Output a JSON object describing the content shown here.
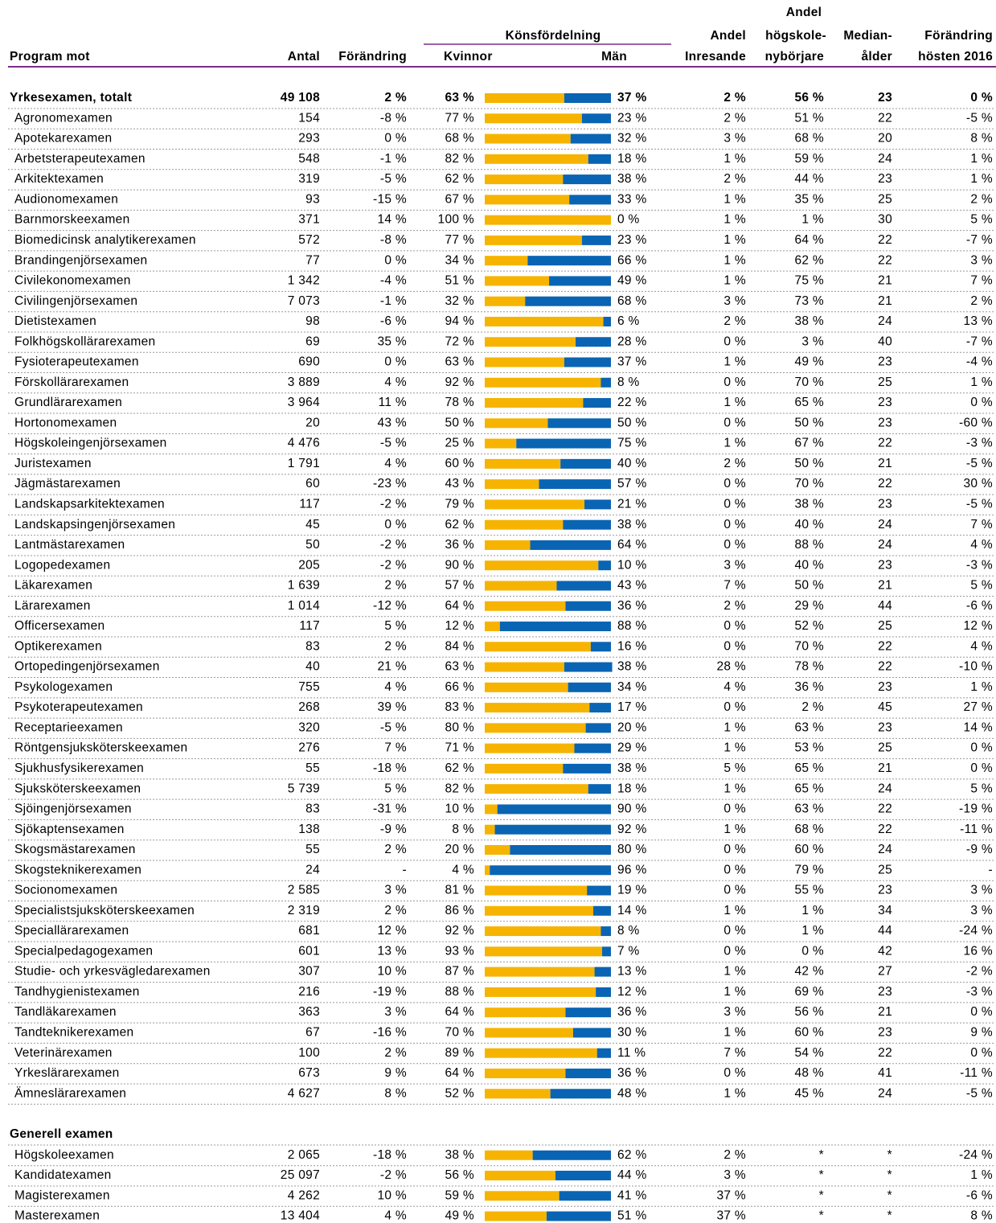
{
  "header": {
    "program": "Program mot",
    "antal": "Antal",
    "forandring": "Förändring",
    "kvinnor": "Kvinnor",
    "man": "Män",
    "kon": "Könsfördelning",
    "andel1": "Andel",
    "inresande": "Inresande",
    "andel2": "Andel",
    "hogskole": "högskole-",
    "nyborjare": "nybörjare",
    "median1": "Median-",
    "median2": "ålder",
    "fhost1": "Förändring",
    "fhost2": "hösten 2016"
  },
  "sections": [
    {
      "rows": [
        [
          "Yrkesexamen, totalt",
          "49 108",
          "2 %",
          63,
          "63 %",
          37,
          "37 %",
          "2 %",
          "56 %",
          "23",
          "0 %"
        ],
        [
          "Agronomexamen",
          "154",
          "-8 %",
          77,
          "77 %",
          23,
          "23 %",
          "2 %",
          "51 %",
          "22",
          "-5 %"
        ],
        [
          "Apotekarexamen",
          "293",
          "0 %",
          68,
          "68 %",
          32,
          "32 %",
          "3 %",
          "68 %",
          "20",
          "8 %"
        ],
        [
          "Arbetsterapeutexamen",
          "548",
          "-1 %",
          82,
          "82 %",
          18,
          "18 %",
          "1 %",
          "59 %",
          "24",
          "1 %"
        ],
        [
          "Arkitektexamen",
          "319",
          "-5 %",
          62,
          "62 %",
          38,
          "38 %",
          "2 %",
          "44 %",
          "23",
          "1 %"
        ],
        [
          "Audionomexamen",
          "93",
          "-15 %",
          67,
          "67 %",
          33,
          "33 %",
          "1 %",
          "35 %",
          "25",
          "2 %"
        ],
        [
          "Barnmorskeexamen",
          "371",
          "14 %",
          100,
          "100 %",
          0,
          "0 %",
          "1 %",
          "1 %",
          "30",
          "5 %"
        ],
        [
          "Biomedicinsk analytikerexamen",
          "572",
          "-8 %",
          77,
          "77 %",
          23,
          "23 %",
          "1 %",
          "64 %",
          "22",
          "-7 %"
        ],
        [
          "Brandingenjörsexamen",
          "77",
          "0 %",
          34,
          "34 %",
          66,
          "66 %",
          "1 %",
          "62 %",
          "22",
          "3 %"
        ],
        [
          "Civilekonomexamen",
          "1 342",
          "-4 %",
          51,
          "51 %",
          49,
          "49 %",
          "1 %",
          "75 %",
          "21",
          "7 %"
        ],
        [
          "Civilingenjörsexamen",
          "7 073",
          "-1 %",
          32,
          "32 %",
          68,
          "68 %",
          "3 %",
          "73 %",
          "21",
          "2 %"
        ],
        [
          "Dietistexamen",
          "98",
          "-6 %",
          94,
          "94 %",
          6,
          "6 %",
          "2 %",
          "38 %",
          "24",
          "13 %"
        ],
        [
          "Folkhögskollärarexamen",
          "69",
          "35 %",
          72,
          "72 %",
          28,
          "28 %",
          "0 %",
          "3 %",
          "40",
          "-7 %"
        ],
        [
          "Fysioterapeutexamen",
          "690",
          "0 %",
          63,
          "63 %",
          37,
          "37 %",
          "1 %",
          "49 %",
          "23",
          "-4 %"
        ],
        [
          "Förskollärarexamen",
          "3 889",
          "4 %",
          92,
          "92 %",
          8,
          "8 %",
          "0 %",
          "70 %",
          "25",
          "1 %"
        ],
        [
          "Grundlärarexamen",
          "3 964",
          "11 %",
          78,
          "78 %",
          22,
          "22 %",
          "1 %",
          "65 %",
          "23",
          "0 %"
        ],
        [
          "Hortonomexamen",
          "20",
          "43 %",
          50,
          "50 %",
          50,
          "50 %",
          "0 %",
          "50 %",
          "23",
          "-60 %"
        ],
        [
          "Högskoleingenjörsexamen",
          "4 476",
          "-5 %",
          25,
          "25 %",
          75,
          "75 %",
          "1 %",
          "67 %",
          "22",
          "-3 %"
        ],
        [
          "Juristexamen",
          "1 791",
          "4 %",
          60,
          "60 %",
          40,
          "40 %",
          "2 %",
          "50 %",
          "21",
          "-5 %"
        ],
        [
          "Jägmästarexamen",
          "60",
          "-23 %",
          43,
          "43 %",
          57,
          "57 %",
          "0 %",
          "70 %",
          "22",
          "30 %"
        ],
        [
          "Landskapsarkitektexamen",
          "117",
          "-2 %",
          79,
          "79 %",
          21,
          "21 %",
          "0 %",
          "38 %",
          "23",
          "-5 %"
        ],
        [
          "Landskapsingenjörsexamen",
          "45",
          "0 %",
          62,
          "62 %",
          38,
          "38 %",
          "0 %",
          "40 %",
          "24",
          "7 %"
        ],
        [
          "Lantmästarexamen",
          "50",
          "-2 %",
          36,
          "36 %",
          64,
          "64 %",
          "0 %",
          "88 %",
          "24",
          "4 %"
        ],
        [
          "Logopedexamen",
          "205",
          "-2 %",
          90,
          "90 %",
          10,
          "10 %",
          "3 %",
          "40 %",
          "23",
          "-3 %"
        ],
        [
          "Läkarexamen",
          "1 639",
          "2 %",
          57,
          "57 %",
          43,
          "43 %",
          "7 %",
          "50 %",
          "21",
          "5 %"
        ],
        [
          "Lärarexamen",
          "1 014",
          "-12 %",
          64,
          "64 %",
          36,
          "36 %",
          "2 %",
          "29 %",
          "44",
          "-6 %"
        ],
        [
          "Officersexamen",
          "117",
          "5 %",
          12,
          "12 %",
          88,
          "88 %",
          "0 %",
          "52 %",
          "25",
          "12 %"
        ],
        [
          "Optikerexamen",
          "83",
          "2 %",
          84,
          "84 %",
          16,
          "16 %",
          "0 %",
          "70 %",
          "22",
          "4 %"
        ],
        [
          "Ortopedingenjörsexamen",
          "40",
          "21 %",
          63,
          "63 %",
          38,
          "38 %",
          "28 %",
          "78 %",
          "22",
          "-10 %"
        ],
        [
          "Psykologexamen",
          "755",
          "4 %",
          66,
          "66 %",
          34,
          "34 %",
          "4 %",
          "36 %",
          "23",
          "1 %"
        ],
        [
          "Psykoterapeutexamen",
          "268",
          "39 %",
          83,
          "83 %",
          17,
          "17 %",
          "0 %",
          "2 %",
          "45",
          "27 %"
        ],
        [
          "Receptarieexamen",
          "320",
          "-5 %",
          80,
          "80 %",
          20,
          "20 %",
          "1 %",
          "63 %",
          "23",
          "14 %"
        ],
        [
          "Röntgensjuksköterskeexamen",
          "276",
          "7 %",
          71,
          "71 %",
          29,
          "29 %",
          "1 %",
          "53 %",
          "25",
          "0 %"
        ],
        [
          "Sjukhusfysikerexamen",
          "55",
          "-18 %",
          62,
          "62 %",
          38,
          "38 %",
          "5 %",
          "65 %",
          "21",
          "0 %"
        ],
        [
          "Sjuksköterskeexamen",
          "5 739",
          "5 %",
          82,
          "82 %",
          18,
          "18 %",
          "1 %",
          "65 %",
          "24",
          "5 %"
        ],
        [
          "Sjöingenjörsexamen",
          "83",
          "-31 %",
          10,
          "10 %",
          90,
          "90 %",
          "0 %",
          "63 %",
          "22",
          "-19 %"
        ],
        [
          "Sjökaptensexamen",
          "138",
          "-9 %",
          8,
          "8 %",
          92,
          "92 %",
          "1 %",
          "68 %",
          "22",
          "-11 %"
        ],
        [
          "Skogsmästarexamen",
          "55",
          "2 %",
          20,
          "20 %",
          80,
          "80 %",
          "0 %",
          "60 %",
          "24",
          "-9 %"
        ],
        [
          "Skogsteknikerexamen",
          "24",
          "-",
          4,
          "4 %",
          96,
          "96 %",
          "0 %",
          "79 %",
          "25",
          "-"
        ],
        [
          "Socionomexamen",
          "2 585",
          "3 %",
          81,
          "81 %",
          19,
          "19 %",
          "0 %",
          "55 %",
          "23",
          "3 %"
        ],
        [
          "Specialistsjuksköterskeexamen",
          "2 319",
          "2 %",
          86,
          "86 %",
          14,
          "14 %",
          "1 %",
          "1 %",
          "34",
          "3 %"
        ],
        [
          "Speciallärarexamen",
          "681",
          "12 %",
          92,
          "92 %",
          8,
          "8 %",
          "0 %",
          "1 %",
          "44",
          "-24 %"
        ],
        [
          "Specialpedagogexamen",
          "601",
          "13 %",
          93,
          "93 %",
          7,
          "7 %",
          "0 %",
          "0 %",
          "42",
          "16 %"
        ],
        [
          "Studie- och yrkesvägledarexamen",
          "307",
          "10 %",
          87,
          "87 %",
          13,
          "13 %",
          "1 %",
          "42 %",
          "27",
          "-2 %"
        ],
        [
          "Tandhygienistexamen",
          "216",
          "-19 %",
          88,
          "88 %",
          12,
          "12 %",
          "1 %",
          "69 %",
          "23",
          "-3 %"
        ],
        [
          "Tandläkarexamen",
          "363",
          "3 %",
          64,
          "64 %",
          36,
          "36 %",
          "3 %",
          "56 %",
          "21",
          "0 %"
        ],
        [
          "Tandteknikerexamen",
          "67",
          "-16 %",
          70,
          "70 %",
          30,
          "30 %",
          "1 %",
          "60 %",
          "23",
          "9 %"
        ],
        [
          "Veterinärexamen",
          "100",
          "2 %",
          89,
          "89 %",
          11,
          "11 %",
          "7 %",
          "54 %",
          "22",
          "0 %"
        ],
        [
          "Yrkeslärarexamen",
          "673",
          "9 %",
          64,
          "64 %",
          36,
          "36 %",
          "0 %",
          "48 %",
          "41",
          "-11 %"
        ],
        [
          "Ämneslärarexamen",
          "4 627",
          "8 %",
          52,
          "52 %",
          48,
          "48 %",
          "1 %",
          "45 %",
          "24",
          "-5 %"
        ]
      ]
    },
    {
      "title": "Generell examen",
      "rows": [
        [
          "Högskoleexamen",
          "2 065",
          "-18 %",
          38,
          "38 %",
          62,
          "62 %",
          "2 %",
          "*",
          "*",
          "-24 %"
        ],
        [
          "Kandidatexamen",
          "25 097",
          "-2 %",
          56,
          "56 %",
          44,
          "44 %",
          "3 %",
          "*",
          "*",
          "1 %"
        ],
        [
          "Magisterexamen",
          "4 262",
          "10 %",
          59,
          "59 %",
          41,
          "41 %",
          "37 %",
          "*",
          "*",
          "-6 %"
        ],
        [
          "Masterexamen",
          "13 404",
          "4 %",
          49,
          "49 %",
          51,
          "51 %",
          "37 %",
          "*",
          "*",
          "8 %"
        ]
      ]
    }
  ]
}
